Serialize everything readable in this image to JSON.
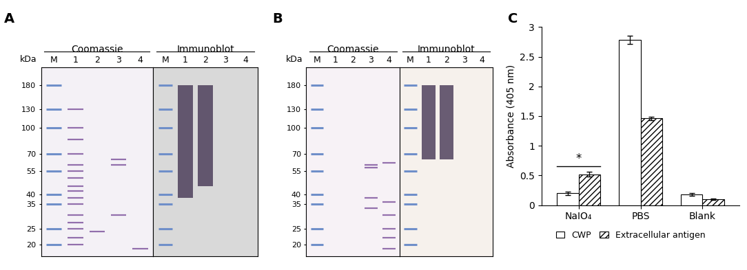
{
  "gels": [
    {
      "label": "A",
      "size_unit": "kDa",
      "ylim": [
        17,
        230
      ],
      "marker_sizes": [
        180,
        130,
        100,
        70,
        55,
        40,
        35,
        25,
        20
      ],
      "stains": [
        {
          "title": "Coomassie",
          "lanes": [
            "M",
            "1",
            "2",
            "3",
            "4"
          ],
          "color": "#f4f1f6",
          "tick_labels": "y",
          "bands": [
            [],
            [
              130,
              100,
              85,
              70,
              60,
              55,
              50,
              45,
              42,
              38,
              35,
              30,
              27,
              25,
              22,
              20
            ],
            [
              24
            ],
            [
              65,
              60,
              30
            ],
            [
              19
            ]
          ],
          "smears": [
            [],
            [],
            [],
            [],
            []
          ]
        },
        {
          "title": "Immunoblot",
          "lanes": [
            "M",
            "1",
            "2",
            "3",
            "4"
          ],
          "color": "#d9d9d9",
          "tick_labels": false,
          "bands": [
            [],
            [],
            [],
            [],
            []
          ],
          "smears": [
            [],
            [
              [
                180,
                38
              ]
            ],
            [
              [
                180,
                45
              ]
            ],
            [],
            []
          ]
        }
      ]
    },
    {
      "label": "B",
      "size_unit": "kDa",
      "ylim": [
        17,
        230
      ],
      "marker_sizes": [
        180,
        130,
        100,
        70,
        55,
        40,
        35,
        25,
        20
      ],
      "stains": [
        {
          "title": "Coomassie",
          "lanes": [
            "M",
            "1",
            "2",
            "3",
            "4"
          ],
          "color": "#f7f2f6",
          "tick_labels": "y",
          "bands": [
            [],
            [],
            [],
            [
              60,
              58,
              38,
              33
            ],
            [
              62,
              36,
              30,
              25,
              22,
              19
            ]
          ],
          "smears": [
            [],
            [],
            [],
            [],
            []
          ]
        },
        {
          "title": "Immunoblot",
          "lanes": [
            "M",
            "1",
            "2",
            "3",
            "4"
          ],
          "color": "#f6f1ec",
          "tick_labels": false,
          "bands": [
            [],
            [],
            [],
            [],
            []
          ],
          "smears": [
            [],
            [
              [
                180,
                65
              ]
            ],
            [
              [
                180,
                65
              ]
            ],
            [],
            []
          ]
        }
      ]
    }
  ],
  "chart_data": {
    "type": "bar",
    "panel_label": "C",
    "categories": [
      "NaIO₄",
      "PBS",
      "Blank"
    ],
    "y_label": "Absorbance (405 nm)",
    "ylim": [
      0,
      3
    ],
    "yticks": [
      0,
      0.5,
      1,
      1.5,
      2,
      2.5,
      3
    ],
    "legend": "upper center",
    "series": [
      {
        "name": "CWP",
        "color": "#ffffff",
        "values": [
          0.2,
          2.78,
          0.18
        ],
        "errors": [
          0.03,
          0.07,
          0.02
        ]
      },
      {
        "name": "Extracellular antigen",
        "color": "#ffffff",
        "values": [
          0.52,
          1.46,
          0.1
        ],
        "errors": [
          0.04,
          0.03,
          0.01
        ]
      }
    ],
    "annotations": [
      {
        "text": "*",
        "category": "NaIO₄"
      }
    ]
  }
}
